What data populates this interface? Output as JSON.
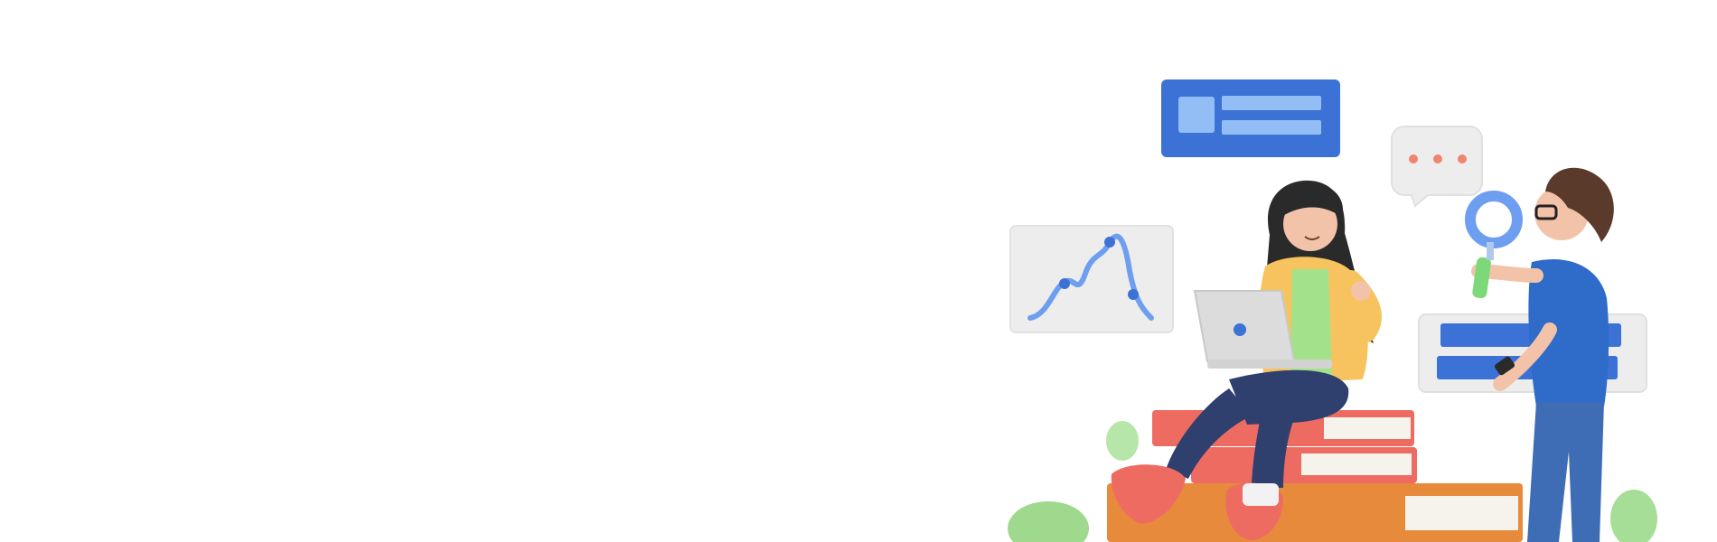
{
  "scene": {
    "background": "#ffffff",
    "subject": "illustration",
    "palette": {
      "primary_blue": "#3C72D6",
      "light_blue": "#93BDF5",
      "card_gray": "#EDEDED",
      "book_red": "#EE6B62",
      "book_orange": "#E78A3C",
      "leaf_green": "#9ED98E",
      "jacket_yellow": "#F7C35F",
      "shirt_green": "#A3E28A",
      "pants_navy": "#2F3F6E",
      "shirt_blue": "#2F6BC8",
      "skin": "#F2C3A8",
      "hair_dark": "#2A2A2A",
      "hair_brown": "#5A3A2A",
      "dot_coral": "#F0846E"
    }
  },
  "icons": {
    "info_card": "info-card-icon",
    "chat_bubble": "chat-bubble-icon",
    "line_chart_card": "line-chart-card-icon",
    "form_card": "form-card-icon",
    "magnifier": "magnifier-icon",
    "laptop": "laptop-icon"
  },
  "chart_card": {
    "line_color": "#6E9EF0",
    "point_color": "#3C72D6"
  }
}
